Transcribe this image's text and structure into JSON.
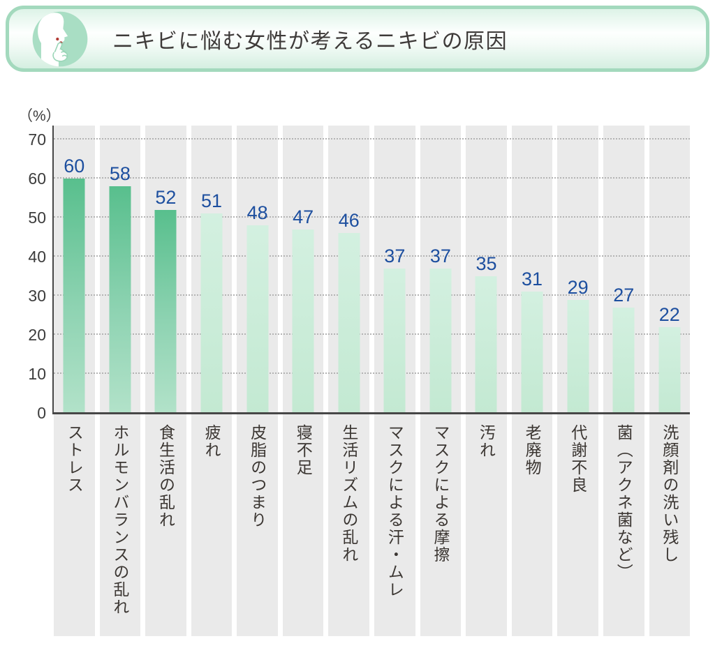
{
  "header": {
    "title": "ニキビに悩む女性が考えるニキビの原因",
    "icon": "face-profile-with-acne-and-pointing-finger",
    "border_color": "#a3d9bd",
    "icon_circle_color": "#a9dec4",
    "acne_dot_color": "#b23a34"
  },
  "chart_data": {
    "type": "bar",
    "title": "ニキビに悩む女性が考えるニキビの原因",
    "unit_label": "（%）",
    "ylim": [
      0,
      70
    ],
    "yticks": [
      0,
      10,
      20,
      30,
      40,
      50,
      60,
      70
    ],
    "grid": "horizontal dotted lines every 10",
    "legend": "none",
    "categories": [
      "ストレス",
      "ホルモンバランスの乱れ",
      "食生活の乱れ",
      "疲れ",
      "皮脂のつまり",
      "寝不足",
      "生活リズムの乱れ",
      "マスクによる汗・ムレ",
      "マスクによる摩擦",
      "汚れ",
      "老廃物",
      "代謝不良",
      "菌（アクネ菌など）",
      "洗顔剤の洗い残し"
    ],
    "values": [
      60,
      58,
      52,
      51,
      48,
      47,
      46,
      37,
      37,
      35,
      31,
      29,
      27,
      22
    ],
    "highlight_count": 3,
    "value_label_color": "#1d4f9f",
    "bar_color_dark_top": "#58bf8d",
    "bar_color_dark_bottom": "#b2e2c9",
    "bar_color_light_top": "#d3f0e0",
    "bar_color_light_bottom": "#c3e9d2",
    "band_color": "#eaeaea",
    "axis_color": "#474747",
    "gridline_color": "#b3b3b3",
    "category_orientation": "vertical-text"
  }
}
